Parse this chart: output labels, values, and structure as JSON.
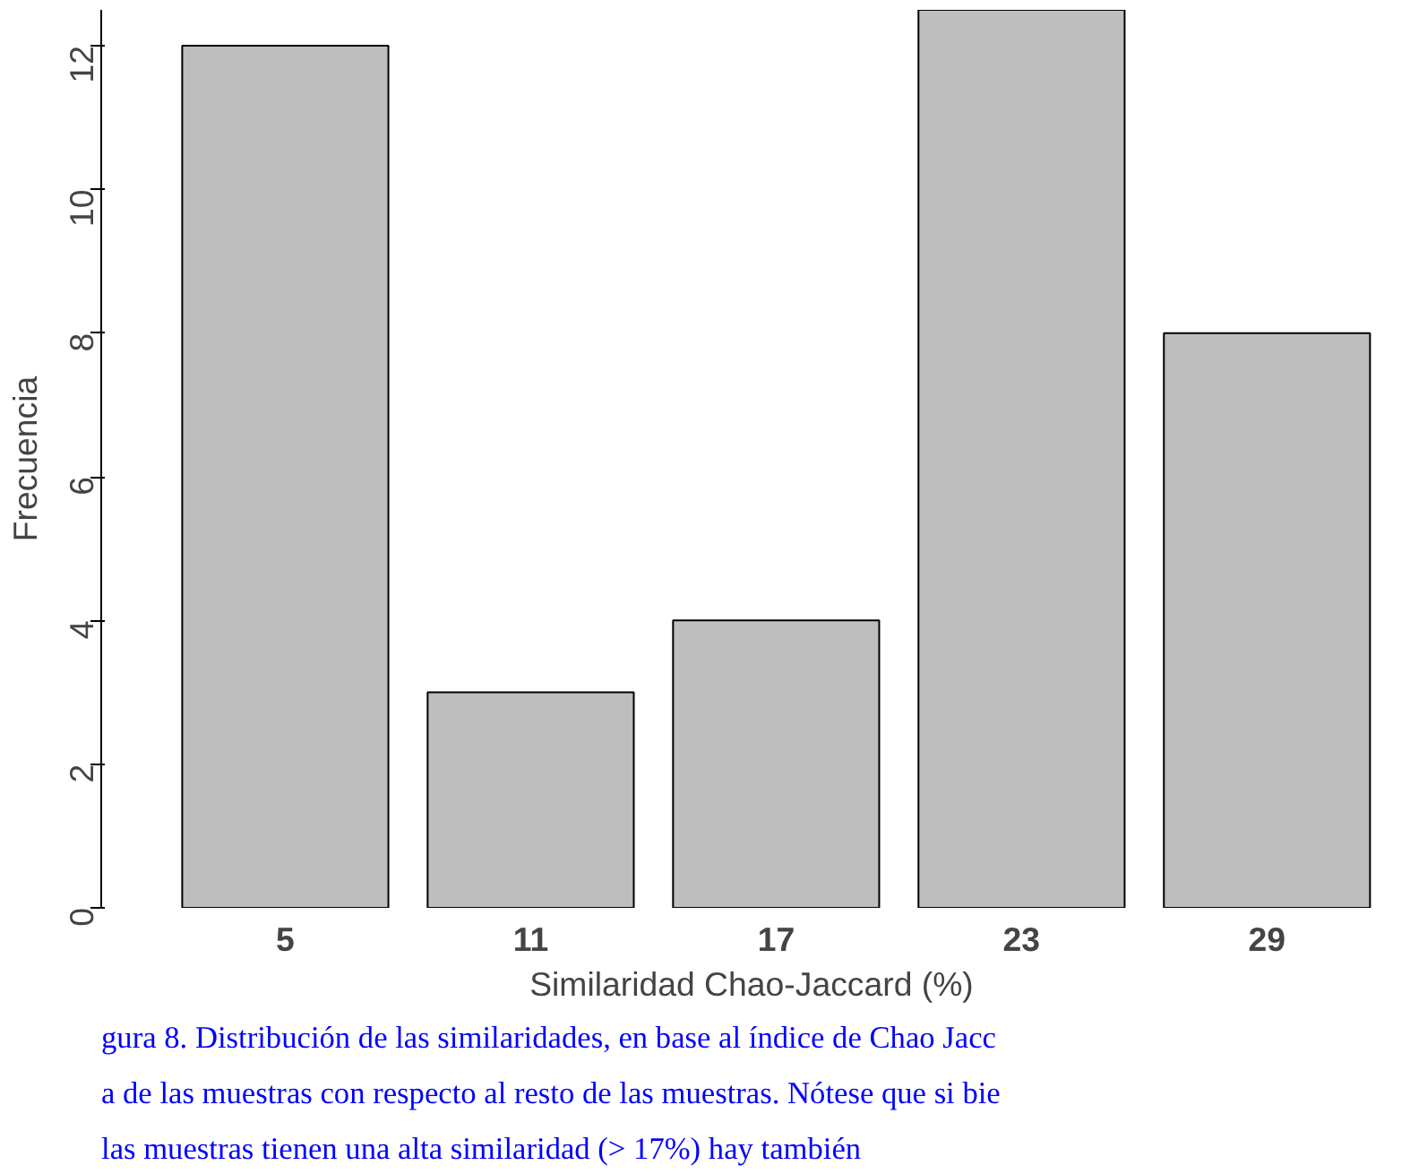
{
  "chart_data": {
    "type": "bar",
    "xlabel": "Similaridad Chao-Jaccard (%)",
    "ylabel": "Frecuencia",
    "categories": [
      "5",
      "11",
      "17",
      "23",
      "29"
    ],
    "values": [
      12,
      3,
      4,
      12.5,
      8
    ],
    "color": "#bebebe",
    "ylim": [
      0,
      12.5
    ],
    "yticks": [
      0,
      2,
      4,
      6,
      8,
      10,
      12
    ],
    "grid": false,
    "annotations": [
      "gura 8. Distribución de las similaridades, en base al índice de Chao Jacc",
      "a de las muestras con respecto al resto de las muestras. Nótese que si bie",
      "las muestras tienen una alta similaridad (> 17%) hay también"
    ]
  }
}
